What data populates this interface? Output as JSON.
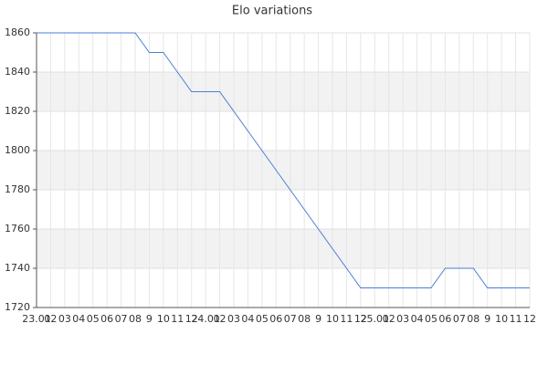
{
  "chart_data": {
    "type": "line",
    "title": "Elo variations",
    "categories": [
      "23.01",
      "02",
      "03",
      "04",
      "05",
      "06",
      "07",
      "08",
      "9",
      "10",
      "11",
      "12",
      "24.01",
      "02",
      "03",
      "04",
      "05",
      "06",
      "07",
      "08",
      "9",
      "10",
      "11",
      "12",
      "25.01",
      "02",
      "03",
      "04",
      "05",
      "06",
      "07",
      "08",
      "9",
      "10",
      "11",
      "12"
    ],
    "series": [
      {
        "color": "#4a7fd6",
        "values": [
          1860,
          1860,
          1860,
          1860,
          1860,
          1860,
          1860,
          1860,
          1850,
          1850,
          1840,
          1830,
          1830,
          1830,
          1820,
          1810,
          1800,
          1790,
          1780,
          1770,
          1760,
          1750,
          1740,
          1730,
          1730,
          1730,
          1730,
          1730,
          1730,
          1740,
          1740,
          1740,
          1730,
          1730,
          1730,
          1730
        ]
      }
    ],
    "ylim": [
      1720,
      1860
    ],
    "yticks": [
      1720,
      1740,
      1760,
      1780,
      1800,
      1820,
      1840,
      1860
    ],
    "grid": true
  }
}
